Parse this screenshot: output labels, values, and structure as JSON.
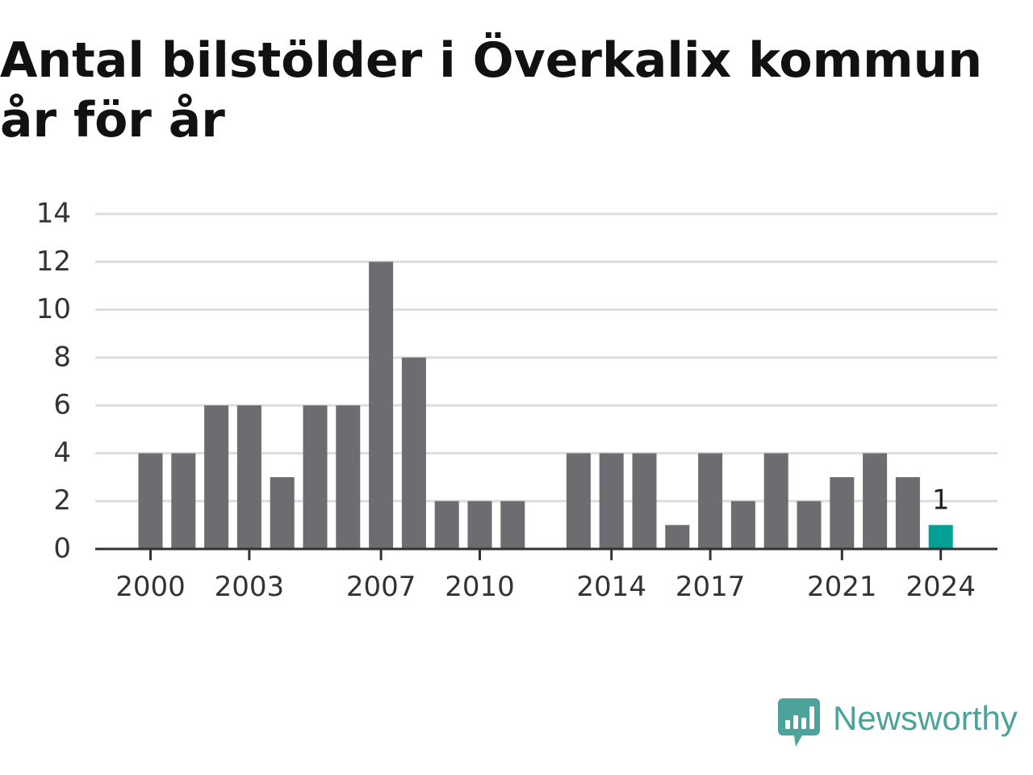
{
  "chart_data": {
    "type": "bar",
    "title": "Antal bilstölder i Överkalix kommun år för år",
    "xlabel": "",
    "ylabel": "",
    "categories": [
      "2000",
      "2001",
      "2002",
      "2003",
      "2004",
      "2005",
      "2006",
      "2007",
      "2008",
      "2009",
      "2010",
      "2011",
      "2012",
      "2013",
      "2014",
      "2015",
      "2016",
      "2017",
      "2018",
      "2019",
      "2020",
      "2021",
      "2022",
      "2023",
      "2024"
    ],
    "values": [
      4,
      4,
      6,
      6,
      3,
      6,
      6,
      12,
      8,
      2,
      2,
      2,
      0,
      4,
      4,
      4,
      1,
      4,
      2,
      4,
      2,
      3,
      4,
      3,
      1
    ],
    "x_tick_labels": [
      "2000",
      "2003",
      "2007",
      "2010",
      "2014",
      "2017",
      "2021",
      "2024"
    ],
    "y_ticks": [
      0,
      2,
      4,
      6,
      8,
      10,
      12,
      14
    ],
    "ylim": [
      0,
      14
    ],
    "grid": true,
    "legend": "none",
    "highlight": {
      "category": "2024",
      "label": "1"
    },
    "colors": {
      "bar": "#6d6c71",
      "highlight": "#00a096",
      "grid": "#dddddd",
      "axis": "#333333",
      "text": "#333333"
    }
  },
  "brand": {
    "name": "Newsworthy",
    "icon": "newsworthy-logo-icon",
    "color": "#4ba39b"
  }
}
